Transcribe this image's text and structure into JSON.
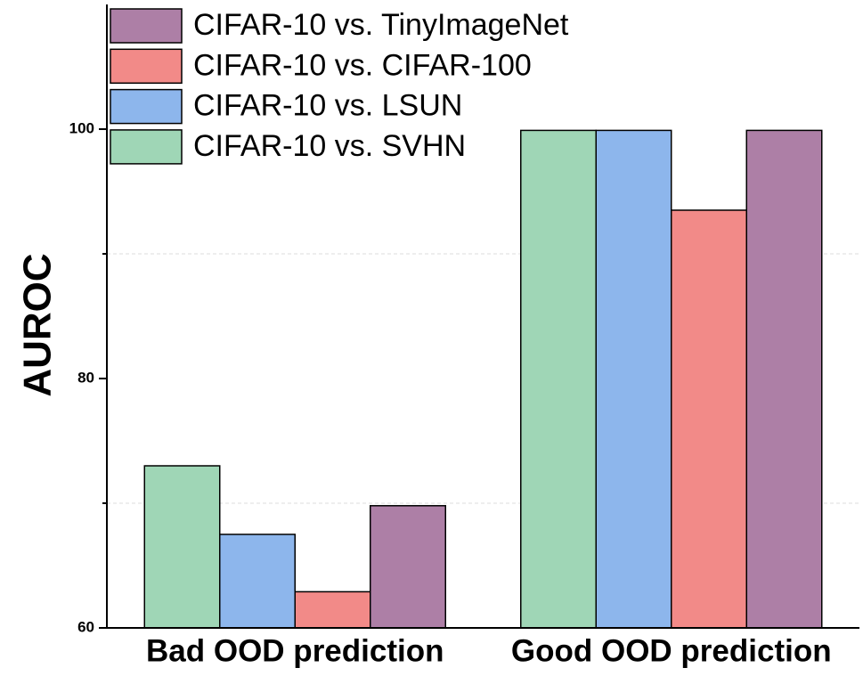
{
  "chart_data": {
    "type": "bar",
    "y_label": "AUROC",
    "categories": [
      "Bad OOD prediction",
      "Good OOD prediction"
    ],
    "series": [
      {
        "name": "CIFAR-10 vs. SVHN",
        "color": "#9fd6b6",
        "values": [
          73.0,
          99.9
        ]
      },
      {
        "name": "CIFAR-10 vs. LSUN",
        "color": "#8db6ec",
        "values": [
          67.5,
          99.9
        ]
      },
      {
        "name": "CIFAR-10 vs. CIFAR-100",
        "color": "#f28a88",
        "values": [
          62.9,
          93.5
        ]
      },
      {
        "name": "CIFAR-10 vs. TinyImageNet",
        "color": "#ad7fa6",
        "values": [
          69.8,
          99.9
        ]
      }
    ],
    "ylim": [
      60,
      110
    ],
    "yticks": [
      60,
      80,
      100
    ],
    "minor_yticks": [
      70,
      90
    ],
    "grid": true,
    "legend": "top-left"
  }
}
